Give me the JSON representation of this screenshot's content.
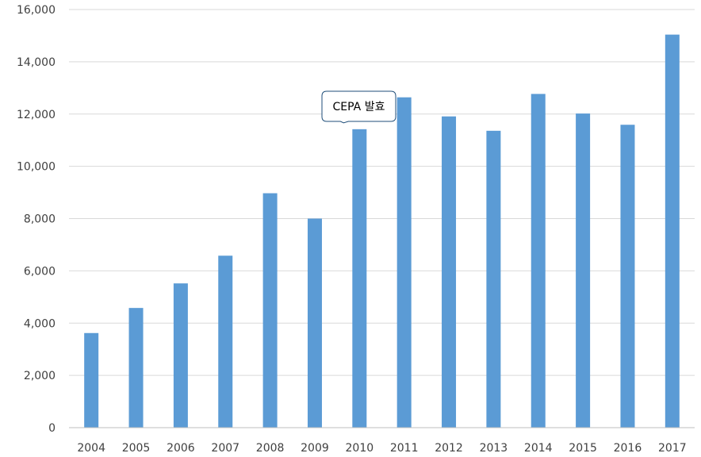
{
  "chart_data": {
    "type": "bar",
    "categories": [
      "2004",
      "2005",
      "2006",
      "2007",
      "2008",
      "2009",
      "2010",
      "2011",
      "2012",
      "2013",
      "2014",
      "2015",
      "2016",
      "2017"
    ],
    "values": [
      3620,
      4580,
      5520,
      6580,
      8970,
      8000,
      11420,
      12640,
      11910,
      11360,
      12770,
      12020,
      11590,
      15040
    ],
    "ylim": [
      0,
      16000
    ],
    "yticks": [
      0,
      2000,
      4000,
      6000,
      8000,
      10000,
      12000,
      14000,
      16000
    ],
    "ytick_labels": [
      "0",
      "2,000",
      "4,000",
      "6,000",
      "8,000",
      "10,000",
      "12,000",
      "14,000",
      "16,000"
    ],
    "grid": true,
    "bar_color": "#5b9bd5",
    "annotation": {
      "text": "CEPA 발효",
      "category": "2010"
    }
  }
}
